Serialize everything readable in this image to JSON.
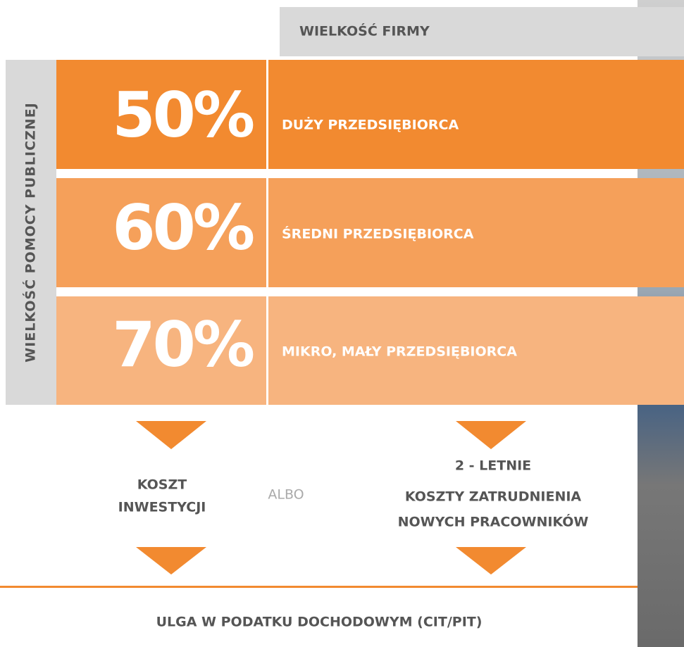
{
  "header": "WIELKOŚĆ FIRMY",
  "side_label": "WIELKOŚĆ POMOCY PUBLICZNEJ",
  "rows": [
    {
      "percent": "50%",
      "label": "DUŻY PRZEDSIĘBIORCA"
    },
    {
      "percent": "60%",
      "label": "ŚREDNI PRZEDSIĘBIORCA"
    },
    {
      "percent": "70%",
      "label": "MIKRO, MAŁY PRZEDSIĘBIORCA"
    }
  ],
  "left_option": {
    "lines": [
      "KOSZT",
      "INWESTYCJI"
    ]
  },
  "connector": "ALBO",
  "right_option": {
    "title": "2 - LETNIE",
    "lines": [
      "KOSZTY ZATRUDNIENIA",
      "NOWYCH PRACOWNIKÓW"
    ]
  },
  "footer": "ULGA W PODATKU DOCHODOWYM (CIT/PIT)"
}
